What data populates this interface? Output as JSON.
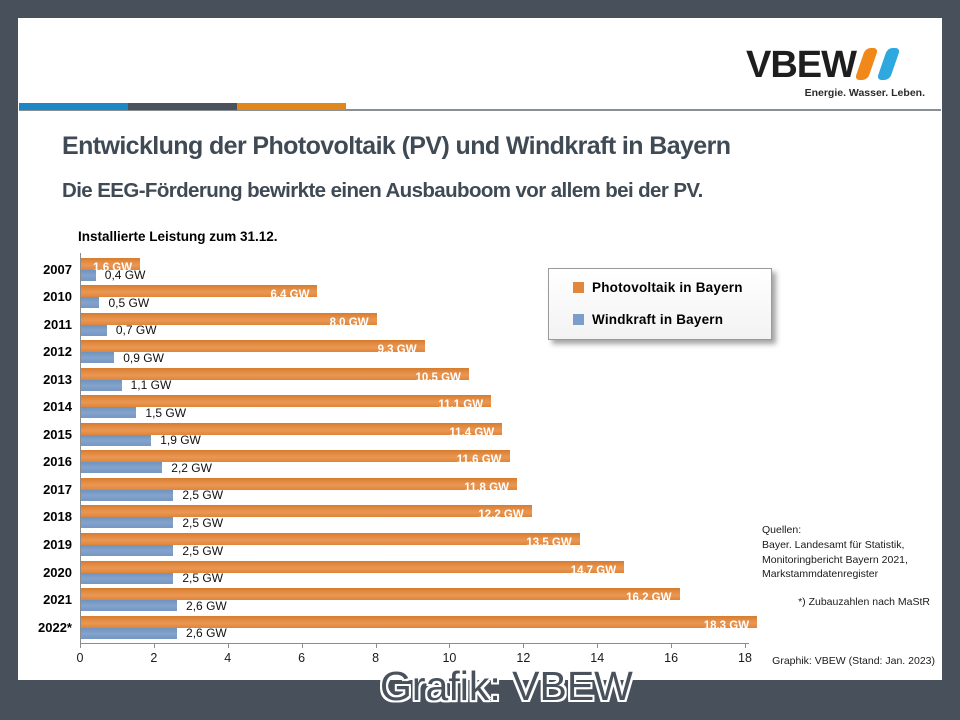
{
  "logo": {
    "brand": "VBEW",
    "tagline": "Energie. Wasser. Leben."
  },
  "header": {
    "title": "Entwicklung der Photovoltaik (PV) und Windkraft in Bayern",
    "subtitle": "Die EEG-Förderung bewirkte einen Ausbauboom vor allem bei der PV."
  },
  "chart_data": {
    "type": "bar",
    "orientation": "horizontal",
    "title": "Installierte Leistung zum 31.12.",
    "unit": "GW",
    "categories": [
      "2007",
      "2010",
      "2011",
      "2012",
      "2013",
      "2014",
      "2015",
      "2016",
      "2017",
      "2018",
      "2019",
      "2020",
      "2021",
      "2022*"
    ],
    "series": [
      {
        "name": "Photovoltaik in Bayern",
        "color": "#E0873C",
        "values": [
          1.6,
          6.4,
          8.0,
          9.3,
          10.5,
          11.1,
          11.4,
          11.6,
          11.8,
          12.2,
          13.5,
          14.7,
          16.2,
          18.3
        ],
        "labels": [
          "1,6 GW",
          "6,4 GW",
          "8,0 GW",
          "9,3 GW",
          "10,5 GW",
          "11,1 GW",
          "11,4 GW",
          "11,6 GW",
          "11,8 GW",
          "12,2 GW",
          "13,5 GW",
          "14,7 GW",
          "16,2 GW",
          "18,3 GW"
        ]
      },
      {
        "name": "Windkraft in Bayern",
        "color": "#7C9DC9",
        "values": [
          0.4,
          0.5,
          0.7,
          0.9,
          1.1,
          1.5,
          1.9,
          2.2,
          2.5,
          2.5,
          2.5,
          2.5,
          2.6,
          2.6
        ],
        "labels": [
          "0,4 GW",
          "0,5 GW",
          "0,7 GW",
          "0,9 GW",
          "1,1 GW",
          "1,5 GW",
          "1,9 GW",
          "2,2 GW",
          "2,5 GW",
          "2,5 GW",
          "2,5 GW",
          "2,5 GW",
          "2,6 GW",
          "2,6 GW"
        ]
      }
    ],
    "xlim": [
      0,
      18
    ],
    "x_ticks": [
      0,
      2,
      4,
      6,
      8,
      10,
      12,
      14,
      16,
      18
    ],
    "grid": false,
    "legend_position": "upper-right"
  },
  "notes": {
    "sources_label": "Quellen:",
    "sources_lines": [
      "Bayer. Landesamt für Statistik,",
      "Monitoringbericht Bayern 2021,",
      "Markstammdatenregister"
    ],
    "footnote": "*) Zubauzahlen nach MaStR",
    "credit": "Graphik: VBEW (Stand: Jan. 2023)",
    "watermark": "Grafik: VBEW"
  },
  "colors": {
    "frame": "#48515B",
    "stripe_blue": "#1B87C4",
    "stripe_slate": "#4A535D",
    "stripe_orange": "#E0861C",
    "title_text": "#3F4A55",
    "pv_bar": "#E0873C",
    "wind_bar": "#7C9DC9"
  }
}
